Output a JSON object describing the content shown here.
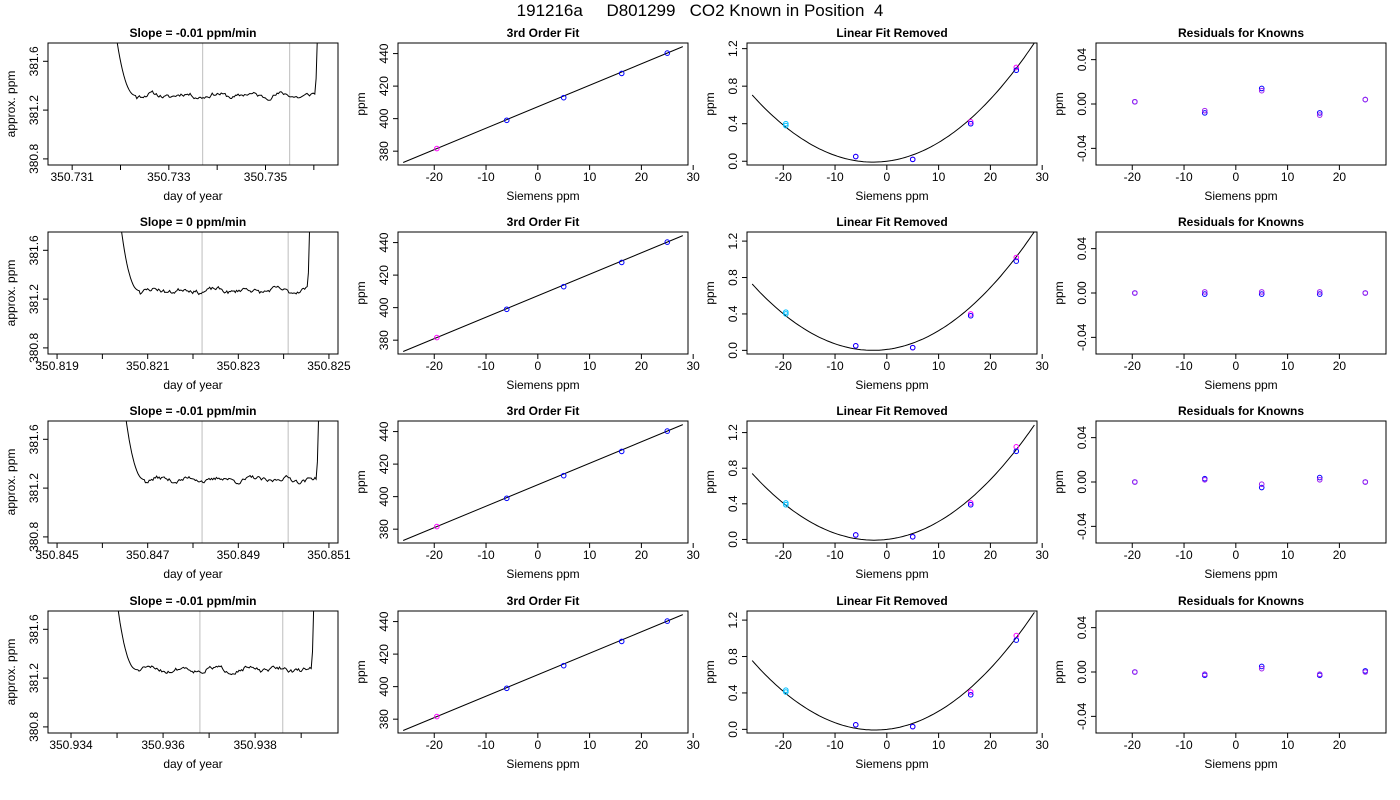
{
  "page_title": "191216a     D801299   CO2 Known in Position  4",
  "colors": {
    "axis": "#000000",
    "trace": "#000000",
    "vline": "#bebebe",
    "pt_a": "#0000ff",
    "pt_b": "#a020f0",
    "pt_c": "#00bfff",
    "pt_d": "#ff00ff"
  },
  "chart_data": [
    {
      "row": 1,
      "panel": "trace",
      "type": "line",
      "title": "Slope =  -0.01  ppm/min",
      "xlabel": "day of year",
      "ylabel": "approx. ppm",
      "xlim": [
        350.7305,
        350.7365
      ],
      "ylim": [
        380.75,
        381.75
      ],
      "xticks": [
        "350.731",
        "350.733",
        "350.735"
      ],
      "xtick_values": [
        350.731,
        350.733,
        350.735
      ],
      "xtick_unlabeled": [
        350.732,
        350.734,
        350.736
      ],
      "yticks": [
        "380.8",
        "381.2",
        "381.6"
      ],
      "ytick_values": [
        380.8,
        381.2,
        381.6
      ],
      "vlines": [
        350.7337,
        350.7355
      ],
      "x_start": 350.7318,
      "x_end": 350.7361,
      "plateau": 381.32,
      "slope_ppm_per_min": -0.01,
      "seed": 11
    },
    {
      "row": 1,
      "panel": "fit",
      "type": "scatter",
      "title": "3rd Order Fit",
      "xlabel": "Siemens ppm",
      "ylabel": "ppm",
      "xlim": [
        -27,
        29
      ],
      "ylim": [
        371.5,
        446.5
      ],
      "xticks": [
        -20,
        -10,
        0,
        10,
        20,
        30
      ],
      "yticks": [
        380,
        400,
        420,
        440
      ],
      "x": [
        -19.5,
        -6,
        5,
        16.2,
        25
      ],
      "y": [
        381.6,
        399,
        412.9,
        427.8,
        440.3
      ]
    },
    {
      "row": 1,
      "panel": "linear_removed",
      "type": "scatter",
      "title": "Linear Fit Removed",
      "xlabel": "Siemens ppm",
      "ylabel": "ppm",
      "xlim": [
        -27,
        29
      ],
      "ylim": [
        -0.04,
        1.26
      ],
      "xticks": [
        -20,
        -10,
        0,
        10,
        20,
        30
      ],
      "yticks": [
        0.0,
        0.4,
        0.8,
        1.2
      ],
      "ytick_labels": [
        "0.0",
        "0.4",
        "0.8",
        "1.2"
      ],
      "curve": {
        "a": 0.00131,
        "b": 0.0069,
        "c": 0.0
      },
      "x": [
        -19.5,
        -6,
        5,
        16.2,
        25
      ],
      "y": [
        0.38,
        0.05,
        0.02,
        0.4,
        0.97
      ],
      "y2": [
        0.4,
        0.05,
        0.02,
        0.42,
        1.0
      ]
    },
    {
      "row": 1,
      "panel": "residuals",
      "type": "scatter",
      "title": "Residuals for Knowns",
      "xlabel": "Siemens ppm",
      "ylabel": "ppm",
      "xlim": [
        -27,
        29
      ],
      "ylim": [
        -0.055,
        0.055
      ],
      "xticks": [
        -20,
        -10,
        0,
        10,
        20
      ],
      "yticks": [
        -0.04,
        0.0,
        0.04
      ],
      "ytick_labels": [
        "-0.04",
        "0.00",
        "0.04"
      ],
      "x": [
        -19.5,
        -6,
        5,
        16.2,
        25
      ],
      "y": [
        0.002,
        -0.006,
        0.012,
        -0.01,
        0.004
      ],
      "y2": [
        0.002,
        -0.008,
        0.014,
        -0.008,
        0.004
      ]
    },
    {
      "row": 2,
      "panel": "trace",
      "type": "line",
      "title": "Slope =  0  ppm/min",
      "xlabel": "day of year",
      "ylabel": "approx. ppm",
      "xlim": [
        350.8188,
        350.8252
      ],
      "ylim": [
        380.75,
        381.75
      ],
      "xticks": [
        "350.819",
        "350.821",
        "350.823",
        "350.825"
      ],
      "xtick_values": [
        350.819,
        350.821,
        350.823,
        350.825
      ],
      "xtick_unlabeled": [
        350.82,
        350.822,
        350.824
      ],
      "yticks": [
        "380.8",
        "381.2",
        "381.6"
      ],
      "ytick_values": [
        380.8,
        381.2,
        381.6
      ],
      "vlines": [
        350.8222,
        350.8241
      ],
      "x_start": 350.8203,
      "x_end": 350.8246,
      "plateau": 381.27,
      "slope_ppm_per_min": 0,
      "seed": 23
    },
    {
      "row": 2,
      "panel": "fit",
      "type": "scatter",
      "title": "3rd Order Fit",
      "xlabel": "Siemens ppm",
      "ylabel": "ppm",
      "xlim": [
        -27,
        29
      ],
      "ylim": [
        371.5,
        446.5
      ],
      "xticks": [
        -20,
        -10,
        0,
        10,
        20,
        30
      ],
      "yticks": [
        380,
        400,
        420,
        440
      ],
      "x": [
        -19.5,
        -6,
        5,
        16.2,
        25
      ],
      "y": [
        381.6,
        399,
        412.9,
        427.8,
        440.3
      ]
    },
    {
      "row": 2,
      "panel": "linear_removed",
      "type": "scatter",
      "title": "Linear Fit Removed",
      "xlabel": "Siemens ppm",
      "ylabel": "ppm",
      "xlim": [
        -27,
        29
      ],
      "ylim": [
        -0.04,
        1.3
      ],
      "xticks": [
        -20,
        -10,
        0,
        10,
        20,
        30
      ],
      "yticks": [
        0.0,
        0.4,
        0.8,
        1.2
      ],
      "ytick_labels": [
        "0.0",
        "0.4",
        "0.8",
        "1.2"
      ],
      "curve": {
        "a": 0.00134,
        "b": 0.0072,
        "c": 0.01
      },
      "x": [
        -19.5,
        -6,
        5,
        16.2,
        25
      ],
      "y": [
        0.4,
        0.05,
        0.03,
        0.38,
        0.98
      ],
      "y2": [
        0.42,
        0.05,
        0.03,
        0.4,
        1.02
      ]
    },
    {
      "row": 2,
      "panel": "residuals",
      "type": "scatter",
      "title": "Residuals for Knowns",
      "xlabel": "Siemens ppm",
      "ylabel": "ppm",
      "xlim": [
        -27,
        29
      ],
      "ylim": [
        -0.055,
        0.055
      ],
      "xticks": [
        -20,
        -10,
        0,
        10,
        20
      ],
      "yticks": [
        -0.04,
        0.0,
        0.04
      ],
      "ytick_labels": [
        "-0.04",
        "0.00",
        "0.04"
      ],
      "x": [
        -19.5,
        -6,
        5,
        16.2,
        25
      ],
      "y": [
        0.0,
        0.001,
        0.001,
        0.001,
        0.0
      ],
      "y2": [
        0.0,
        -0.001,
        -0.001,
        -0.001,
        0.0
      ]
    },
    {
      "row": 3,
      "panel": "trace",
      "type": "line",
      "title": "Slope =  -0.01  ppm/min",
      "xlabel": "day of year",
      "ylabel": "approx. ppm",
      "xlim": [
        350.8448,
        350.8512
      ],
      "ylim": [
        380.75,
        381.75
      ],
      "xticks": [
        "350.845",
        "350.847",
        "350.849",
        "350.851"
      ],
      "xtick_values": [
        350.845,
        350.847,
        350.849,
        350.851
      ],
      "xtick_unlabeled": [
        350.846,
        350.848,
        350.85
      ],
      "yticks": [
        "380.8",
        "381.2",
        "381.6"
      ],
      "ytick_values": [
        380.8,
        381.2,
        381.6
      ],
      "vlines": [
        350.8482,
        350.8501
      ],
      "x_start": 350.8464,
      "x_end": 350.8508,
      "plateau": 381.27,
      "slope_ppm_per_min": -0.01,
      "seed": 37
    },
    {
      "row": 3,
      "panel": "fit",
      "type": "scatter",
      "title": "3rd Order Fit",
      "xlabel": "Siemens ppm",
      "ylabel": "ppm",
      "xlim": [
        -27,
        29
      ],
      "ylim": [
        371.5,
        446.5
      ],
      "xticks": [
        -20,
        -10,
        0,
        10,
        20,
        30
      ],
      "yticks": [
        380,
        400,
        420,
        440
      ],
      "x": [
        -19.5,
        -6,
        5,
        16.2,
        25
      ],
      "y": [
        381.6,
        399,
        412.9,
        427.8,
        440.3
      ]
    },
    {
      "row": 3,
      "panel": "linear_removed",
      "type": "scatter",
      "title": "Linear Fit Removed",
      "xlabel": "Siemens ppm",
      "ylabel": "ppm",
      "xlim": [
        -27,
        29
      ],
      "ylim": [
        -0.04,
        1.33
      ],
      "xticks": [
        -20,
        -10,
        0,
        10,
        20,
        30
      ],
      "yticks": [
        0.0,
        0.4,
        0.8,
        1.2
      ],
      "ytick_labels": [
        "0.0",
        "0.4",
        "0.8",
        "1.2"
      ],
      "curve": {
        "a": 0.00135,
        "b": 0.0066,
        "c": 0.0
      },
      "x": [
        -19.5,
        -6,
        5,
        16.2,
        25
      ],
      "y": [
        0.39,
        0.05,
        0.03,
        0.39,
        0.99
      ],
      "y2": [
        0.41,
        0.05,
        0.03,
        0.41,
        1.04
      ]
    },
    {
      "row": 3,
      "panel": "residuals",
      "type": "scatter",
      "title": "Residuals for Knowns",
      "xlabel": "Siemens ppm",
      "ylabel": "ppm",
      "xlim": [
        -27,
        29
      ],
      "ylim": [
        -0.055,
        0.055
      ],
      "xticks": [
        -20,
        -10,
        0,
        10,
        20
      ],
      "yticks": [
        -0.04,
        0.0,
        0.04
      ],
      "ytick_labels": [
        "-0.04",
        "0.00",
        "0.04"
      ],
      "x": [
        -19.5,
        -6,
        5,
        16.2,
        25
      ],
      "y": [
        0.0,
        0.002,
        -0.002,
        0.002,
        0.0
      ],
      "y2": [
        0.0,
        0.003,
        -0.005,
        0.004,
        0.0
      ]
    },
    {
      "row": 4,
      "panel": "trace",
      "type": "line",
      "title": "Slope =  -0.01  ppm/min",
      "xlabel": "day of year",
      "ylabel": "approx. ppm",
      "xlim": [
        350.9335,
        350.9398
      ],
      "ylim": [
        380.75,
        381.75
      ],
      "xticks": [
        "350.934",
        "350.936",
        "350.938"
      ],
      "xtick_values": [
        350.934,
        350.936,
        350.938
      ],
      "xtick_unlabeled": [
        350.935,
        350.937,
        350.939
      ],
      "yticks": [
        "380.8",
        "381.2",
        "381.6"
      ],
      "ytick_values": [
        380.8,
        381.2,
        381.6
      ],
      "vlines": [
        350.9368,
        350.9386
      ],
      "x_start": 350.9349,
      "x_end": 350.9393,
      "plateau": 381.27,
      "slope_ppm_per_min": -0.01,
      "seed": 51
    },
    {
      "row": 4,
      "panel": "fit",
      "type": "scatter",
      "title": "3rd Order Fit",
      "xlabel": "Siemens ppm",
      "ylabel": "ppm",
      "xlim": [
        -27,
        29
      ],
      "ylim": [
        371.5,
        446.5
      ],
      "xticks": [
        -20,
        -10,
        0,
        10,
        20,
        30
      ],
      "yticks": [
        380,
        400,
        420,
        440
      ],
      "x": [
        -19.5,
        -6,
        5,
        16.2,
        25
      ],
      "y": [
        381.6,
        399,
        412.9,
        427.8,
        440.3
      ]
    },
    {
      "row": 4,
      "panel": "linear_removed",
      "type": "scatter",
      "title": "Linear Fit Removed",
      "xlabel": "Siemens ppm",
      "ylabel": "ppm",
      "xlim": [
        -27,
        29
      ],
      "ylim": [
        -0.04,
        1.3
      ],
      "xticks": [
        -20,
        -10,
        0,
        10,
        20,
        30
      ],
      "yticks": [
        0.0,
        0.4,
        0.8,
        1.2
      ],
      "ytick_labels": [
        "0.0",
        "0.4",
        "0.8",
        "1.2"
      ],
      "curve": {
        "a": 0.00136,
        "b": 0.0063,
        "c": 0.0
      },
      "x": [
        -19.5,
        -6,
        5,
        16.2,
        25
      ],
      "y": [
        0.41,
        0.05,
        0.03,
        0.38,
        0.98
      ],
      "y2": [
        0.43,
        0.05,
        0.03,
        0.41,
        1.03
      ]
    },
    {
      "row": 4,
      "panel": "residuals",
      "type": "scatter",
      "title": "Residuals for Knowns",
      "xlabel": "Siemens ppm",
      "ylabel": "ppm",
      "xlim": [
        -27,
        29
      ],
      "ylim": [
        -0.055,
        0.055
      ],
      "xticks": [
        -20,
        -10,
        0,
        10,
        20
      ],
      "yticks": [
        -0.04,
        0.0,
        0.04
      ],
      "ytick_labels": [
        "-0.04",
        "0.00",
        "0.04"
      ],
      "x": [
        -19.5,
        -6,
        5,
        16.2,
        25
      ],
      "y": [
        0.0,
        -0.002,
        0.003,
        -0.002,
        0.0
      ],
      "y2": [
        0.0,
        -0.003,
        0.005,
        -0.003,
        0.001
      ]
    }
  ]
}
